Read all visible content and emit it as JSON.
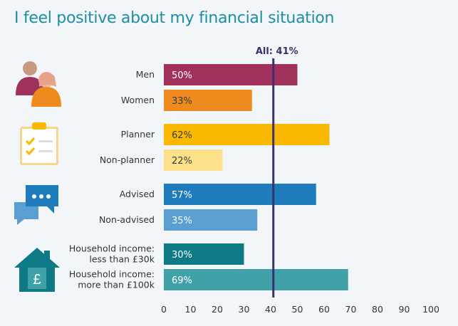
{
  "chart_data": {
    "type": "bar",
    "orientation": "horizontal",
    "title": "I feel positive about my financial situation",
    "categories": [
      "Men",
      "Women",
      "Planner",
      "Non-planner",
      "Advised",
      "Non-advised",
      "Household income:\nless than £30k",
      "Household income:\nmore than £100k"
    ],
    "values": [
      50,
      33,
      62,
      22,
      57,
      35,
      30,
      69
    ],
    "data_labels": [
      "50%",
      "33%",
      "62%",
      "22%",
      "57%",
      "35%",
      "30%",
      "69%"
    ],
    "bar_colors": [
      "#a0305c",
      "#ef8a1f",
      "#fbb800",
      "#fde18a",
      "#1f7cbc",
      "#5a9fd0",
      "#0d7a86",
      "#40a2a8"
    ],
    "label_colors": [
      "#ffffff",
      "#3a3a3a",
      "#3a3a3a",
      "#3a3a3a",
      "#ffffff",
      "#ffffff",
      "#ffffff",
      "#ffffff"
    ],
    "xlim": [
      0,
      100
    ],
    "xticks": [
      0,
      10,
      20,
      30,
      40,
      50,
      60,
      70,
      80,
      90,
      100
    ],
    "reference_line": {
      "value": 41,
      "label": "All: 41%",
      "color": "#3b2f6e"
    },
    "grid": false,
    "groups": [
      {
        "icon": "people-icon",
        "rows": [
          0,
          1
        ]
      },
      {
        "icon": "clipboard-checklist-icon",
        "rows": [
          2,
          3
        ]
      },
      {
        "icon": "chat-bubbles-icon",
        "rows": [
          4,
          5
        ]
      },
      {
        "icon": "house-pound-icon",
        "rows": [
          6,
          7
        ]
      }
    ]
  },
  "colors": {
    "title": "#1f8da3",
    "background": "#f3f6f8",
    "axis": "#3b2f6e",
    "text": "#333333"
  }
}
